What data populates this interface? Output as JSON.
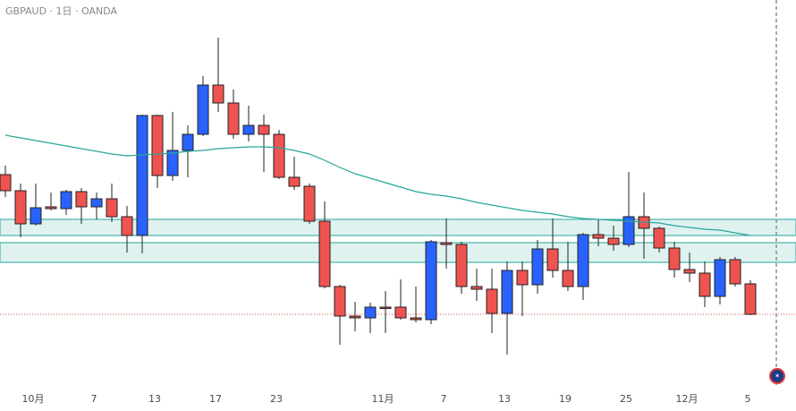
{
  "chart_data": {
    "type": "candlestick",
    "title": "GBPAUD · 1日 · OANDA",
    "categories": [
      null,
      null,
      "10月",
      null,
      null,
      null,
      "7",
      null,
      null,
      null,
      "13",
      null,
      null,
      null,
      "17",
      null,
      null,
      null,
      "23",
      null,
      null,
      null,
      null,
      null,
      null,
      "11月",
      null,
      null,
      null,
      "7",
      null,
      null,
      null,
      "13",
      null,
      null,
      null,
      "19",
      null,
      null,
      null,
      "25",
      null,
      null,
      null,
      "12月",
      null,
      null,
      null,
      "5"
    ],
    "open": [
      1.947,
      1.9434,
      1.936,
      1.9398,
      1.9394,
      1.9432,
      1.9398,
      1.9416,
      1.9376,
      1.9334,
      1.9602,
      1.9468,
      1.9524,
      1.956,
      1.967,
      1.963,
      1.956,
      1.958,
      1.956,
      1.9464,
      1.9444,
      1.9366,
      1.922,
      1.9154,
      1.915,
      1.9174,
      1.9174,
      1.915,
      1.9146,
      1.9318,
      1.9314,
      1.922,
      1.9214,
      1.916,
      1.9256,
      1.9224,
      1.9304,
      1.9256,
      1.922,
      1.9336,
      1.9328,
      1.9314,
      1.9376,
      1.935,
      1.9306,
      1.9258,
      1.925,
      1.9198,
      1.928,
      1.9226
    ],
    "high": [
      1.949,
      1.945,
      1.945,
      1.943,
      1.9436,
      1.944,
      1.943,
      1.945,
      1.94,
      1.9604,
      1.9604,
      1.961,
      1.958,
      1.969,
      1.9776,
      1.966,
      1.9624,
      1.9604,
      1.957,
      1.951,
      1.945,
      1.941,
      1.9224,
      1.9186,
      1.9184,
      1.921,
      1.9236,
      1.922,
      1.9324,
      1.9372,
      1.932,
      1.926,
      1.926,
      1.9276,
      1.9276,
      1.9324,
      1.9372,
      1.932,
      1.934,
      1.937,
      1.9356,
      1.9476,
      1.943,
      1.9354,
      1.932,
      1.9296,
      1.9276,
      1.9286,
      1.9286,
      1.9234
    ],
    "low": [
      1.942,
      1.933,
      1.9356,
      1.939,
      1.938,
      1.936,
      1.937,
      1.9364,
      1.9296,
      1.9294,
      1.944,
      1.9456,
      1.9464,
      1.9556,
      1.961,
      1.955,
      1.9544,
      1.9476,
      1.946,
      1.9436,
      1.936,
      1.9216,
      1.909,
      1.912,
      1.9116,
      1.9116,
      1.9146,
      1.914,
      1.9136,
      1.926,
      1.9204,
      1.9188,
      1.9116,
      1.9068,
      1.9154,
      1.9204,
      1.924,
      1.921,
      1.919,
      1.931,
      1.93,
      1.9308,
      1.9282,
      1.9296,
      1.924,
      1.923,
      1.9174,
      1.918,
      1.922,
      1.9156
    ],
    "close": [
      1.9434,
      1.936,
      1.9396,
      1.9394,
      1.9432,
      1.9398,
      1.9416,
      1.9376,
      1.9334,
      1.9602,
      1.9468,
      1.9524,
      1.956,
      1.967,
      1.963,
      1.956,
      1.958,
      1.956,
      1.9464,
      1.9444,
      1.9366,
      1.922,
      1.9154,
      1.915,
      1.9174,
      1.9172,
      1.915,
      1.9146,
      1.932,
      1.9314,
      1.922,
      1.9214,
      1.916,
      1.9256,
      1.9224,
      1.9304,
      1.9256,
      1.922,
      1.9336,
      1.9328,
      1.9314,
      1.9376,
      1.935,
      1.9306,
      1.9258,
      1.925,
      1.9198,
      1.928,
      1.9226,
      1.9158
    ],
    "up_color": "#2962ff",
    "down_color": "#ef5350",
    "moving_average": {
      "color": "#26a69a",
      "values": [
        1.9558,
        1.9552,
        1.9546,
        1.954,
        1.9534,
        1.9528,
        1.9522,
        1.9516,
        1.9512,
        1.9514,
        1.9516,
        1.9518,
        1.9522,
        1.9524,
        1.9528,
        1.953,
        1.9532,
        1.9532,
        1.953,
        1.9524,
        1.9516,
        1.9502,
        1.9486,
        1.9472,
        1.9462,
        1.9452,
        1.9442,
        1.9432,
        1.9426,
        1.9422,
        1.9416,
        1.9408,
        1.9402,
        1.9396,
        1.939,
        1.9386,
        1.9382,
        1.9376,
        1.9372,
        1.937,
        1.9368,
        1.9366,
        1.9364,
        1.9362,
        1.9356,
        1.9352,
        1.9348,
        1.9346,
        1.934,
        1.9334
      ]
    },
    "zones": [
      [
        1.9334,
        1.937
      ],
      [
        1.9274,
        1.9318
      ]
    ],
    "zone_color": "#26a69a",
    "price_line": 1.9158,
    "price_line_color": "#ef5350",
    "ylim": [
      1.9,
      1.986
    ]
  }
}
